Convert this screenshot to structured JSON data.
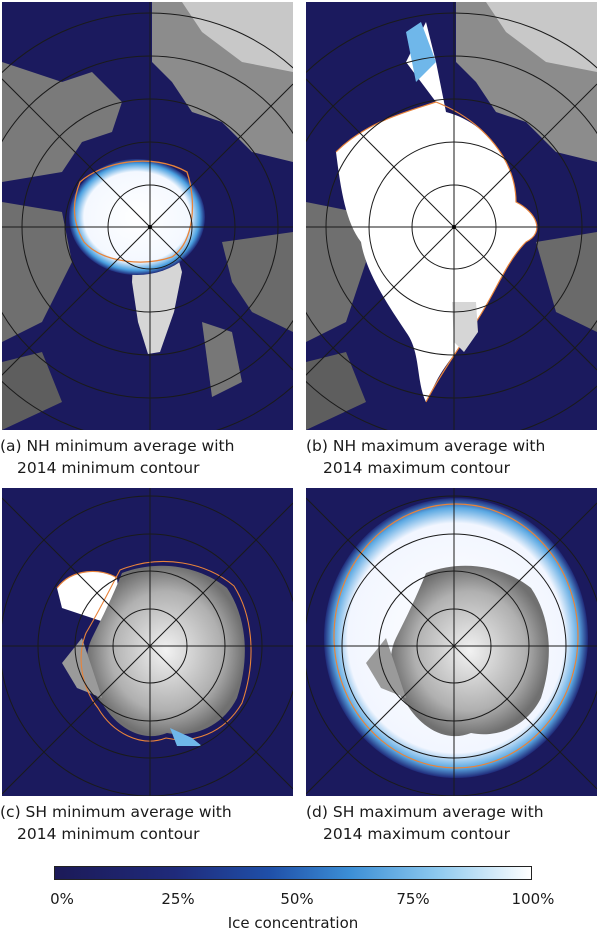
{
  "panels": [
    {
      "id": "a",
      "label_line1": "(a) NH minimum average with",
      "label_line2": "2014 minimum contour"
    },
    {
      "id": "b",
      "label_line1": "(b) NH maximum average with",
      "label_line2": "2014 maximum contour"
    },
    {
      "id": "c",
      "label_line1": "(c) SH minimum average with",
      "label_line2": "2014 minimum contour"
    },
    {
      "id": "d",
      "label_line1": "(d) SH maximum average with",
      "label_line2": "2014 maximum contour"
    }
  ],
  "colorbar": {
    "ticks": [
      "0%",
      "25%",
      "50%",
      "75%",
      "100%"
    ],
    "label": "Ice concentration",
    "colors": {
      "ocean": "#1c1a58",
      "mid": "#1f4fa8",
      "ice": "#ffffff",
      "contour": "#e8833a"
    }
  }
}
